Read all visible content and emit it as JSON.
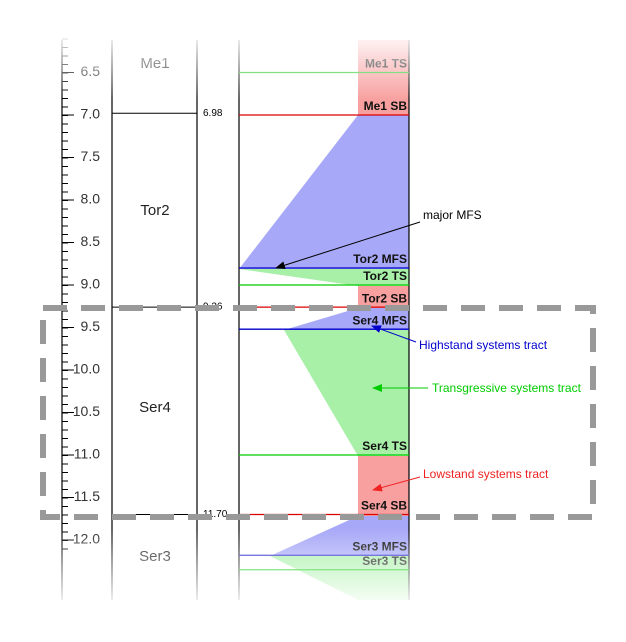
{
  "scale": {
    "ticks": [
      6.5,
      {
        "value": 7,
        "label": "7.0"
      },
      7.5,
      {
        "value": 8,
        "label": "8.0"
      },
      8.5,
      {
        "value": 9,
        "label": "9.0"
      },
      9.5,
      {
        "value": 10,
        "label": "10.0"
      },
      10.5,
      {
        "value": 11,
        "label": "11.0"
      },
      11.5,
      {
        "value": 12,
        "label": "12.0"
      }
    ]
  },
  "units": [
    {
      "name": "Me1",
      "depth": 6.4
    },
    {
      "name": "Tor2",
      "depth": 8.13
    },
    {
      "name": "Ser4",
      "depth": 10.45
    },
    {
      "name": "Ser3",
      "depth": 12.2
    }
  ],
  "boundaries": [
    {
      "value": 6.98,
      "label": "6.98"
    },
    {
      "value": 9.26,
      "label": "9.26"
    },
    {
      "value": 11.7,
      "label": "11.70"
    }
  ],
  "surfaces": [
    {
      "label": "Me1 TS",
      "depth": 6.5,
      "color": "#33cc33"
    },
    {
      "label": "Me1 SB",
      "depth": 7.0,
      "color": "#dd0000"
    },
    {
      "label": "Tor2 MFS",
      "depth": 8.8,
      "color": "#0000cc"
    },
    {
      "label": "Tor2 TS",
      "depth": 9.0,
      "color": "#00cc00"
    },
    {
      "label": "Tor2 SB",
      "depth": 9.26,
      "color": "#dd0000"
    },
    {
      "label": "Ser4 MFS",
      "depth": 9.52,
      "color": "#0000cc"
    },
    {
      "label": "Ser4 TS",
      "depth": 11.0,
      "color": "#00cc00"
    },
    {
      "label": "Ser4 SB",
      "depth": 11.7,
      "color": "#dd0000"
    },
    {
      "label": "Ser3 MFS",
      "depth": 12.18,
      "color": "#3333cc"
    },
    {
      "label": "Ser3 TS",
      "depth": 12.35,
      "color": "#00cc00"
    }
  ],
  "annotations": {
    "major_mfs": "major MFS",
    "highstand": "Highstand systems tract",
    "transgressive": "Transgressive systems tract",
    "lowstand": "Lowstand systems tract"
  }
}
